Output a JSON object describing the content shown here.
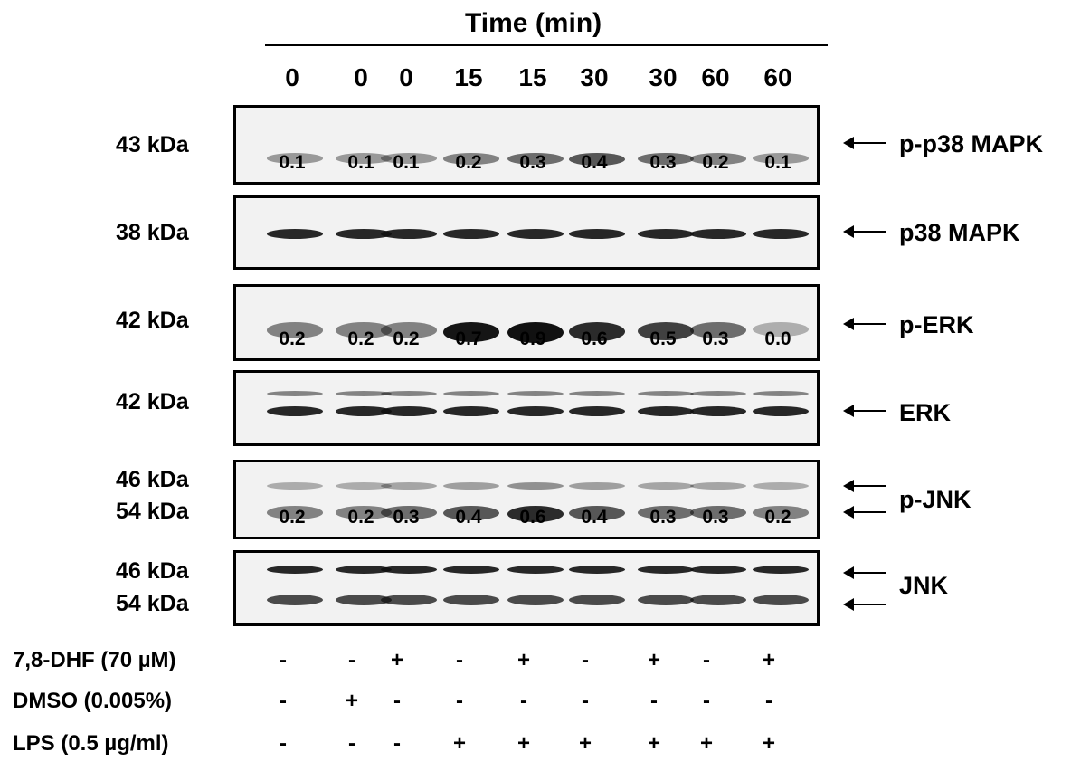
{
  "time_axis": {
    "title": "Time (min)",
    "lanes": [
      "0",
      "0",
      "0",
      "15",
      "15",
      "30",
      "30",
      "60",
      "60"
    ]
  },
  "blots": [
    {
      "id": "p-p38",
      "target": "p-p38 MAPK",
      "mw": [
        "43 kDa"
      ],
      "quant": [
        "0.1",
        "0.1",
        "0.1",
        "0.2",
        "0.3",
        "0.4",
        "0.3",
        "0.2",
        "0.1"
      ],
      "band_levels": [
        0.1,
        0.1,
        0.1,
        0.2,
        0.3,
        0.4,
        0.3,
        0.2,
        0.1
      ]
    },
    {
      "id": "p38",
      "target": "p38 MAPK",
      "mw": [
        "38 kDa"
      ],
      "quant": []
    },
    {
      "id": "p-erk",
      "target": "p-ERK",
      "mw": [
        "42 kDa"
      ],
      "quant": [
        "0.2",
        "0.2",
        "0.2",
        "0.7",
        "0.9",
        "0.6",
        "0.5",
        "0.3",
        "0.0"
      ],
      "band_levels": [
        0.2,
        0.2,
        0.2,
        0.7,
        0.9,
        0.6,
        0.5,
        0.3,
        0.0
      ]
    },
    {
      "id": "erk",
      "target": "ERK",
      "mw": [
        "42 kDa"
      ],
      "quant": []
    },
    {
      "id": "p-jnk",
      "target": "p-JNK",
      "mw": [
        "46 kDa",
        "54 kDa"
      ],
      "quant": [
        "0.2",
        "0.2",
        "0.3",
        "0.4",
        "0.6",
        "0.4",
        "0.3",
        "0.3",
        "0.2"
      ],
      "band_levels": [
        0.2,
        0.2,
        0.3,
        0.4,
        0.6,
        0.4,
        0.3,
        0.3,
        0.2
      ]
    },
    {
      "id": "jnk",
      "target": "JNK",
      "mw": [
        "46 kDa",
        "54 kDa"
      ],
      "quant": []
    }
  ],
  "conditions": [
    {
      "label": "7,8-DHF (70 µM)",
      "signs": [
        "-",
        "-",
        "+",
        "-",
        "+",
        "-",
        "+",
        "-",
        "+"
      ]
    },
    {
      "label": "DMSO (0.005%)",
      "signs": [
        "-",
        "+",
        "-",
        "-",
        "-",
        "-",
        "-",
        "-",
        "-"
      ]
    },
    {
      "label": "LPS (0.5 µg/ml)",
      "signs": [
        "-",
        "-",
        "-",
        "+",
        "+",
        "+",
        "+",
        "+",
        "+"
      ]
    }
  ]
}
